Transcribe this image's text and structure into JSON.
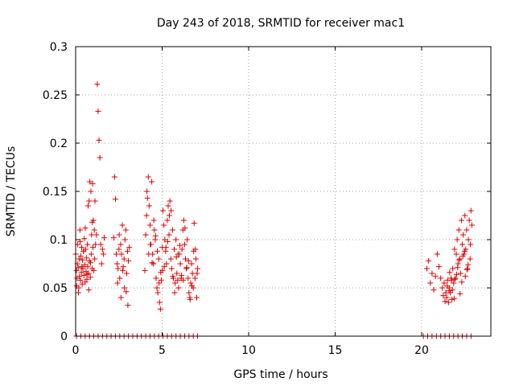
{
  "chart_data": {
    "type": "scatter",
    "title": "Day 243 of 2018, SRMTID for receiver mac1",
    "xlabel": "GPS time / hours",
    "ylabel": "SRMTID / TECUs",
    "xlim": [
      0,
      24
    ],
    "ylim": [
      0,
      0.3
    ],
    "xticks": [
      0,
      5,
      10,
      15,
      20
    ],
    "xtick_labels": [
      "0",
      "5",
      "10",
      "15",
      "20"
    ],
    "yticks": [
      0,
      0.05,
      0.1,
      0.15,
      0.2,
      0.25,
      0.3
    ],
    "ytick_labels": [
      "0",
      "0.05",
      "0.1",
      "0.15",
      "0.2",
      "0.25",
      "0.3"
    ],
    "grid": true,
    "marker": "+",
    "series": [
      {
        "name": "SRMTID",
        "color": "#dd0000",
        "x": [
          0.0,
          0.05,
          0.08,
          0.1,
          0.12,
          0.15,
          0.18,
          0.2,
          0.22,
          0.25,
          0.28,
          0.3,
          0.33,
          0.35,
          0.38,
          0.4,
          0.42,
          0.45,
          0.48,
          0.5,
          0.52,
          0.55,
          0.58,
          0.6,
          0.62,
          0.65,
          0.68,
          0.7,
          0.72,
          0.75,
          0.78,
          0.8,
          0.82,
          0.85,
          0.88,
          0.9,
          0.92,
          0.95,
          0.98,
          1.0,
          1.03,
          1.05,
          1.08,
          1.1,
          1.12,
          1.15,
          1.2,
          1.25,
          1.3,
          1.35,
          1.4,
          1.45,
          1.5,
          1.55,
          1.6,
          1.65,
          0.06,
          0.16,
          0.26,
          0.36,
          0.46,
          0.56,
          0.66,
          0.76,
          0.86,
          0.96,
          2.2,
          2.25,
          2.3,
          2.35,
          2.4,
          2.45,
          2.5,
          2.55,
          2.6,
          2.65,
          2.7,
          2.75,
          2.8,
          2.85,
          2.9,
          2.95,
          3.0,
          3.05,
          3.1,
          2.42,
          2.62,
          2.82,
          3.02,
          2.52,
          2.72,
          2.92,
          4.0,
          4.05,
          4.1,
          4.15,
          4.2,
          4.25,
          4.3,
          4.35,
          4.4,
          4.45,
          4.5,
          4.55,
          4.6,
          4.65,
          4.7,
          4.75,
          4.8,
          4.85,
          4.9,
          4.95,
          5.0,
          5.05,
          5.1,
          5.15,
          5.2,
          5.25,
          5.3,
          5.35,
          5.4,
          5.45,
          5.5,
          5.55,
          5.6,
          5.65,
          5.7,
          5.75,
          5.8,
          5.85,
          5.9,
          5.95,
          6.0,
          6.05,
          6.1,
          6.15,
          6.2,
          6.25,
          6.3,
          6.35,
          6.4,
          6.45,
          6.5,
          6.55,
          6.6,
          6.65,
          6.7,
          6.75,
          6.8,
          6.85,
          6.9,
          6.95,
          7.0,
          7.05,
          4.12,
          4.32,
          4.52,
          4.72,
          4.92,
          5.12,
          5.32,
          5.52,
          5.72,
          5.92,
          6.12,
          6.32,
          6.52,
          6.72,
          6.92,
          4.22,
          4.42,
          4.62,
          4.82,
          5.02,
          5.22,
          5.42,
          5.62,
          5.82,
          6.02,
          6.22,
          6.42,
          6.62,
          6.82,
          7.02,
          20.3,
          20.4,
          20.5,
          20.6,
          20.7,
          20.8,
          20.9,
          21.0,
          21.1,
          21.2,
          21.3,
          21.4,
          21.45,
          21.5,
          21.55,
          21.6,
          21.65,
          21.7,
          21.75,
          21.8,
          21.85,
          21.9,
          21.95,
          22.0,
          22.05,
          22.1,
          22.15,
          22.2,
          22.25,
          22.3,
          22.35,
          22.4,
          22.45,
          22.5,
          22.55,
          22.6,
          22.65,
          22.7,
          22.75,
          22.8,
          22.85,
          22.9,
          21.25,
          21.48,
          21.62,
          21.78,
          21.92,
          22.08,
          22.22,
          22.38,
          22.52,
          22.68,
          22.82,
          21.35,
          21.58,
          21.72,
          21.88,
          22.02,
          22.18,
          22.32,
          22.48,
          22.62,
          0.05,
          0.3,
          0.55,
          0.8,
          1.05,
          1.3,
          1.55,
          1.8,
          2.05,
          2.3,
          2.55,
          2.8,
          3.05,
          3.3,
          3.55,
          3.8,
          4.05,
          4.3,
          4.55,
          4.8,
          5.05,
          5.3,
          5.55,
          5.8,
          6.05,
          6.3,
          6.55,
          6.8,
          7.05,
          20.1,
          20.35,
          20.6,
          20.85,
          21.1,
          21.35,
          21.6,
          21.85,
          22.1,
          22.35,
          22.6,
          22.85
        ],
        "y": [
          0.085,
          0.068,
          0.06,
          0.075,
          0.095,
          0.071,
          0.05,
          0.08,
          0.062,
          0.11,
          0.058,
          0.083,
          0.066,
          0.092,
          0.054,
          0.079,
          0.07,
          0.088,
          0.063,
          0.101,
          0.074,
          0.056,
          0.09,
          0.067,
          0.081,
          0.059,
          0.095,
          0.072,
          0.135,
          0.065,
          0.14,
          0.078,
          0.16,
          0.061,
          0.15,
          0.085,
          0.105,
          0.07,
          0.158,
          0.092,
          0.12,
          0.068,
          0.11,
          0.08,
          0.14,
          0.095,
          0.105,
          0.261,
          0.233,
          0.203,
          0.185,
          0.095,
          0.075,
          0.09,
          0.085,
          0.102,
          0.052,
          0.045,
          0.098,
          0.072,
          0.088,
          0.112,
          0.064,
          0.048,
          0.076,
          0.118,
          0.102,
          0.165,
          0.142,
          0.085,
          0.075,
          0.07,
          0.09,
          0.06,
          0.095,
          0.085,
          0.115,
          0.072,
          0.08,
          0.1,
          0.11,
          0.065,
          0.088,
          0.078,
          0.092,
          0.055,
          0.04,
          0.05,
          0.032,
          0.105,
          0.068,
          0.046,
          0.068,
          0.105,
          0.125,
          0.143,
          0.165,
          0.135,
          0.115,
          0.095,
          0.16,
          0.085,
          0.075,
          0.11,
          0.1,
          0.06,
          0.05,
          0.045,
          0.08,
          0.035,
          0.028,
          0.058,
          0.092,
          0.13,
          0.115,
          0.1,
          0.088,
          0.075,
          0.12,
          0.135,
          0.105,
          0.14,
          0.08,
          0.07,
          0.11,
          0.06,
          0.09,
          0.055,
          0.1,
          0.065,
          0.058,
          0.05,
          0.085,
          0.075,
          0.06,
          0.09,
          0.11,
          0.12,
          0.095,
          0.08,
          0.07,
          0.1,
          0.06,
          0.045,
          0.04,
          0.055,
          0.075,
          0.065,
          0.05,
          0.117,
          0.06,
          0.08,
          0.04,
          0.07,
          0.15,
          0.095,
          0.12,
          0.088,
          0.066,
          0.072,
          0.098,
          0.13,
          0.045,
          0.085,
          0.063,
          0.112,
          0.078,
          0.052,
          0.09,
          0.085,
          0.076,
          0.104,
          0.055,
          0.068,
          0.092,
          0.125,
          0.062,
          0.082,
          0.094,
          0.058,
          0.071,
          0.038,
          0.088,
          0.065,
          0.07,
          0.078,
          0.055,
          0.065,
          0.048,
          0.062,
          0.085,
          0.072,
          0.06,
          0.05,
          0.055,
          0.045,
          0.04,
          0.058,
          0.035,
          0.05,
          0.045,
          0.06,
          0.038,
          0.07,
          0.055,
          0.09,
          0.06,
          0.085,
          0.1,
          0.075,
          0.11,
          0.08,
          0.065,
          0.12,
          0.095,
          0.105,
          0.085,
          0.125,
          0.09,
          0.11,
          0.07,
          0.1,
          0.12,
          0.08,
          0.13,
          0.115,
          0.042,
          0.052,
          0.066,
          0.048,
          0.059,
          0.071,
          0.044,
          0.083,
          0.062,
          0.074,
          0.095,
          0.036,
          0.047,
          0.058,
          0.039,
          0.064,
          0.079,
          0.056,
          0.088,
          0.069,
          0,
          0,
          0,
          0,
          0,
          0,
          0,
          0,
          0,
          0,
          0,
          0,
          0,
          0,
          0,
          0,
          0,
          0,
          0,
          0,
          0,
          0,
          0,
          0,
          0,
          0,
          0,
          0,
          0,
          0,
          0,
          0,
          0,
          0,
          0,
          0,
          0,
          0,
          0,
          0,
          0
        ]
      }
    ]
  }
}
